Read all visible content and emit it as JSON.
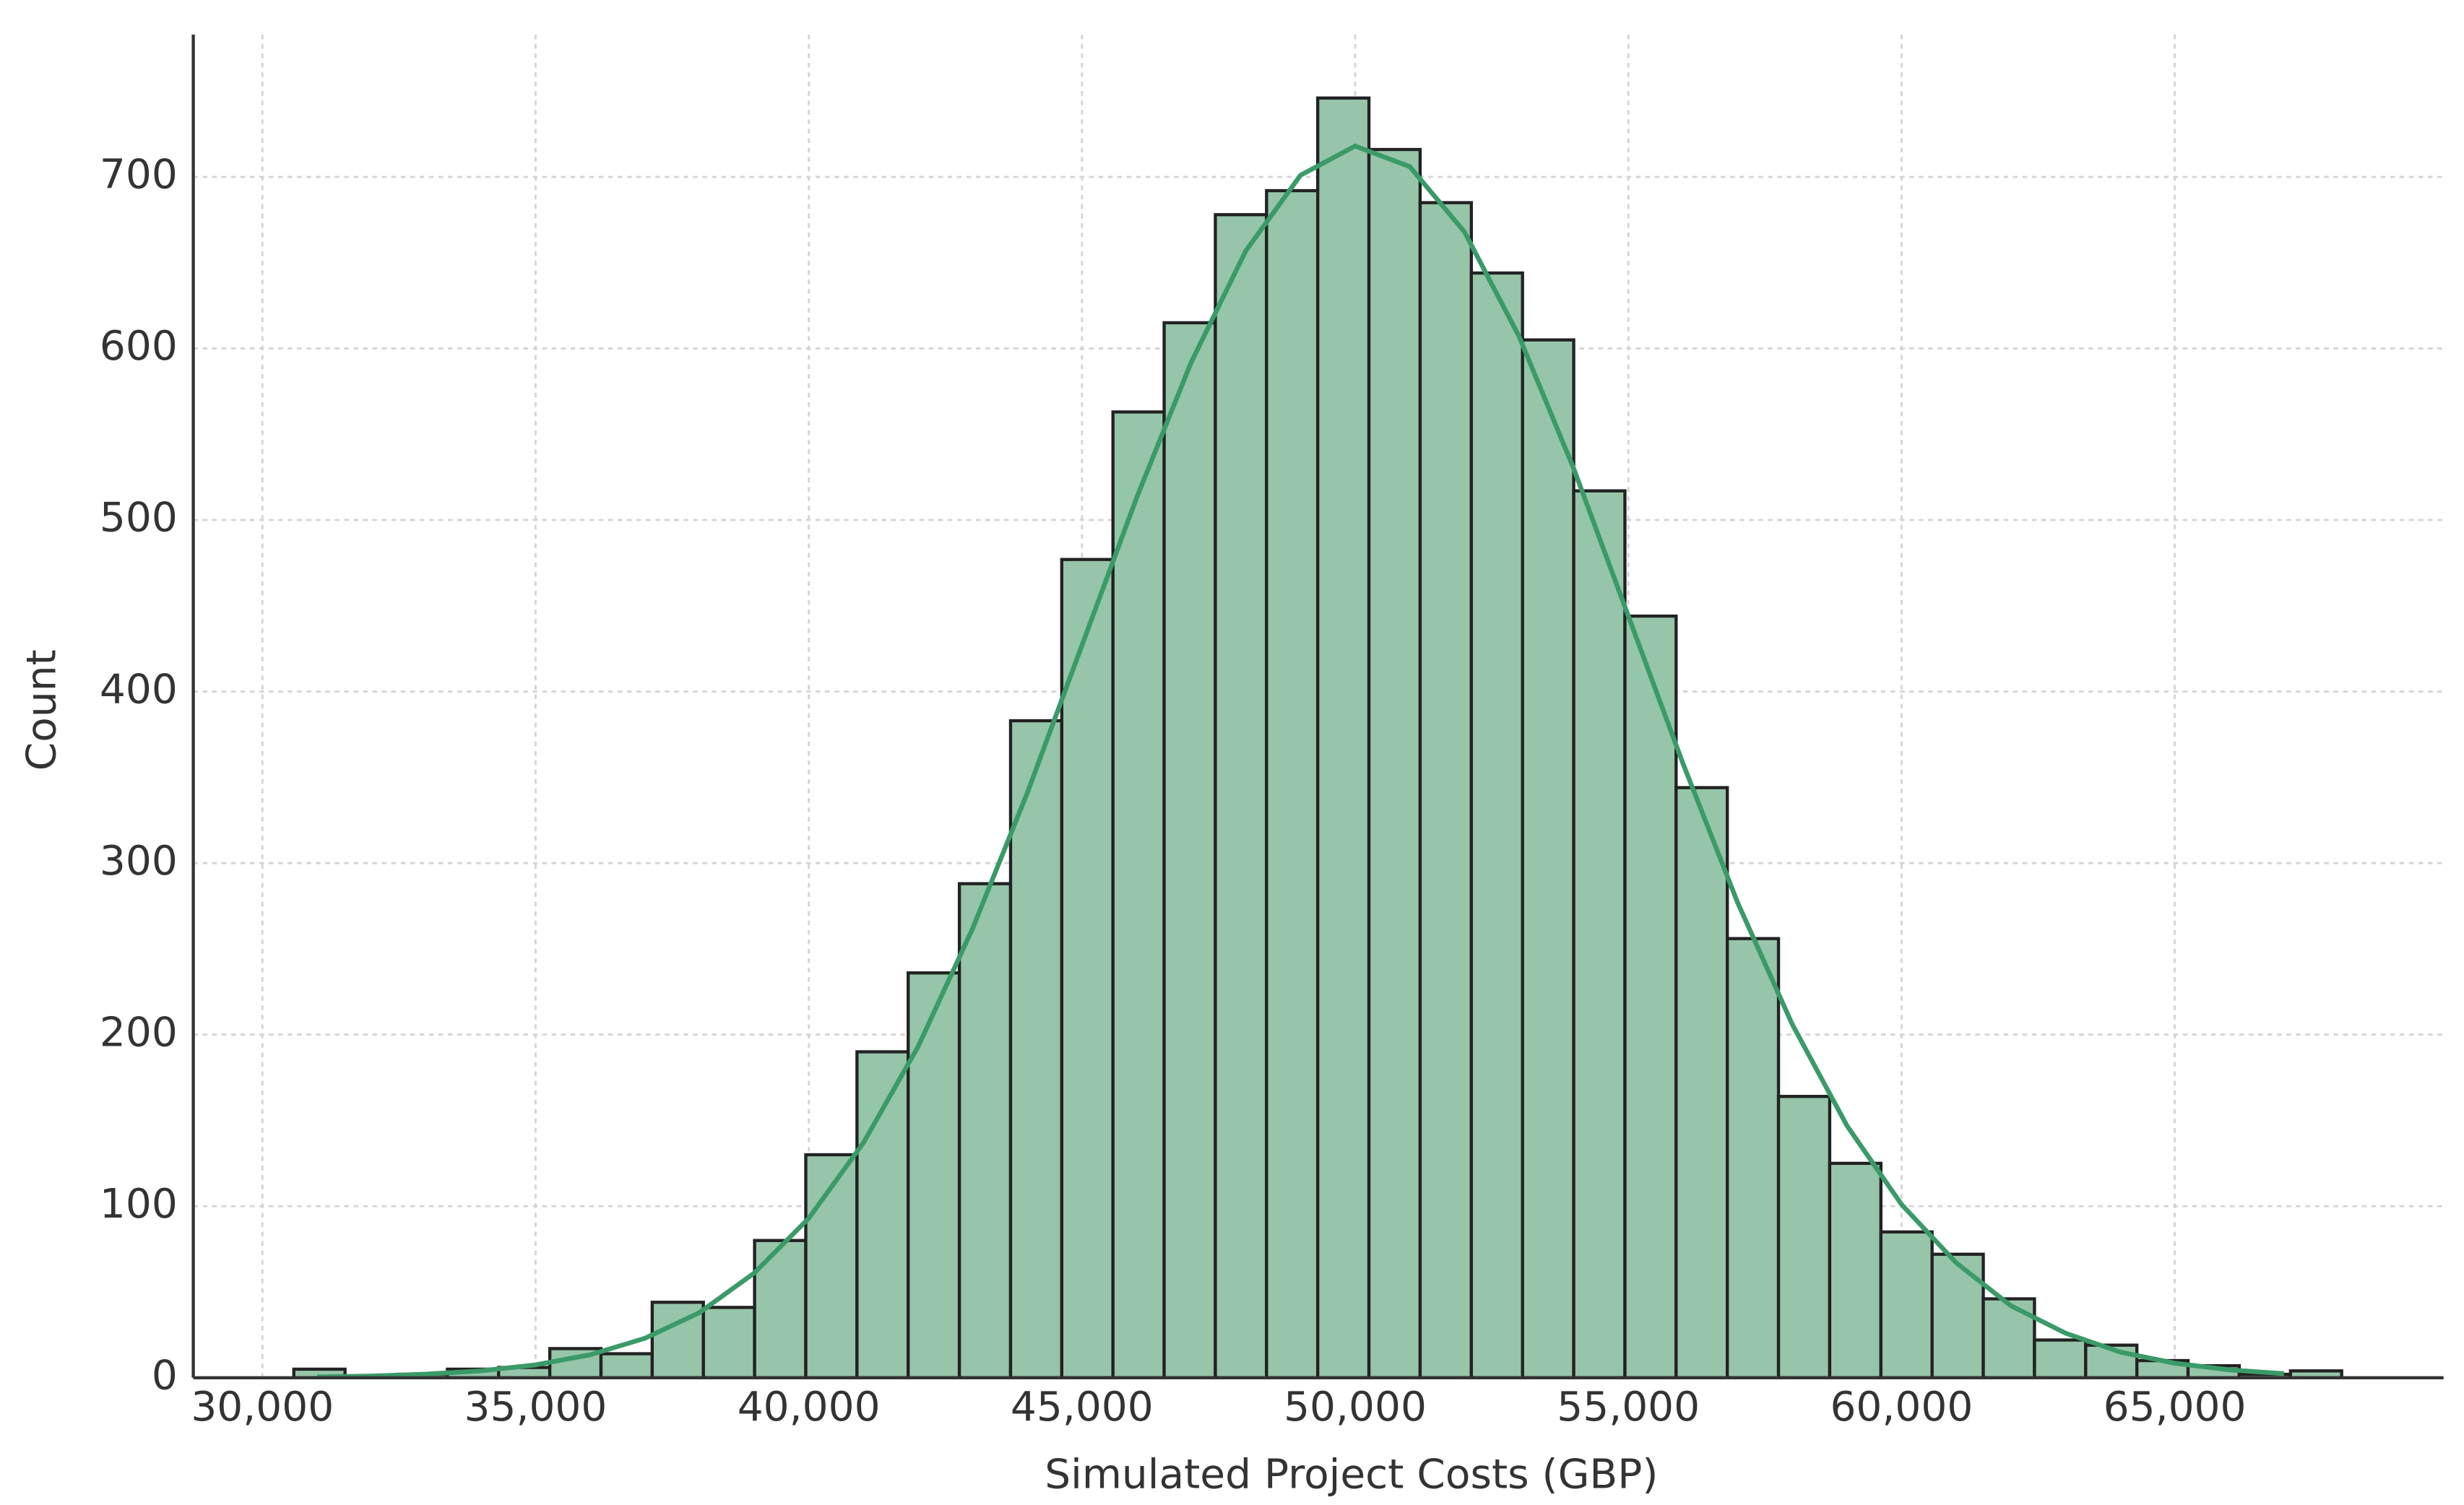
{
  "chart_data": {
    "type": "histogram",
    "x_label": "Simulated Project Costs (GBP)",
    "y_label": "Count",
    "bins": [
      30575,
      31512,
      32449,
      33386,
      34323,
      35260,
      36197,
      37134,
      38071,
      39008,
      39945,
      40882,
      41819,
      42756,
      43693,
      44630,
      45567,
      46504,
      47441,
      48378,
      49315,
      50252,
      51189,
      52126,
      53063,
      54000,
      54937,
      55874,
      56811,
      57748,
      58685,
      59622,
      60559,
      61496,
      62433,
      63370,
      64307,
      65244,
      66181,
      67118,
      68055
    ],
    "values": [
      5,
      1,
      2,
      5,
      6,
      17,
      14,
      44,
      41,
      80,
      130,
      190,
      236,
      288,
      383,
      477,
      563,
      615,
      678,
      692,
      746,
      716,
      685,
      644,
      605,
      517,
      444,
      344,
      256,
      164,
      125,
      85,
      72,
      46,
      22,
      19,
      10,
      7,
      2,
      4
    ],
    "color": "#96c5a9",
    "edgecolor": "#222222",
    "kde": {
      "color": "#3a9a68",
      "x": [
        31000,
        32000,
        33000,
        34000,
        35000,
        36000,
        37000,
        38000,
        39000,
        40000,
        41000,
        42000,
        43000,
        44000,
        45000,
        46000,
        47000,
        48000,
        49000,
        50000,
        51000,
        52000,
        53000,
        54000,
        55000,
        56000,
        57000,
        58000,
        59000,
        60000,
        61000,
        62000,
        63000,
        64000,
        65000,
        66000,
        67000
      ],
      "values": [
        0.5,
        1,
        2.1,
        4,
        7.5,
        13.4,
        23,
        38,
        61,
        93,
        137,
        193,
        262,
        341,
        427,
        513,
        592,
        657,
        701,
        718,
        706,
        668,
        607,
        530,
        444,
        358,
        277,
        206,
        147,
        101,
        67,
        42,
        26,
        15,
        8.5,
        4.6,
        2.4
      ]
    },
    "xlim": [
      28735,
      69920
    ],
    "ylim": [
      0,
      783
    ],
    "xticks": [
      {
        "value": 30000,
        "label": "30,000"
      },
      {
        "value": 35000,
        "label": "35,000"
      },
      {
        "value": 40000,
        "label": "40,000"
      },
      {
        "value": 45000,
        "label": "45,000"
      },
      {
        "value": 50000,
        "label": "50,000"
      },
      {
        "value": 55000,
        "label": "55,000"
      },
      {
        "value": 60000,
        "label": "60,000"
      },
      {
        "value": 65000,
        "label": "65,000"
      }
    ],
    "yticks": [
      0,
      100,
      200,
      300,
      400,
      500,
      600,
      700
    ],
    "grid": true
  }
}
